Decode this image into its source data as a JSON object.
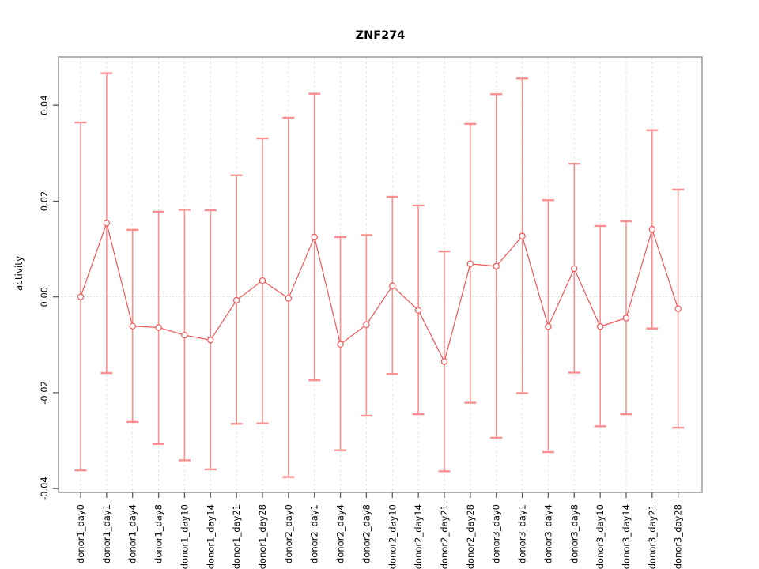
{
  "page": {
    "background": "#ffffff"
  },
  "chart_data": {
    "type": "line",
    "subtype": "points-with-error-bars",
    "title": "ZNF274",
    "xlabel": "",
    "ylabel": "activity",
    "categories": [
      "donor1_day0",
      "donor1_day1",
      "donor1_day4",
      "donor1_day8",
      "donor1_day10",
      "donor1_day14",
      "donor1_day21",
      "donor1_day28",
      "donor2_day0",
      "donor2_day1",
      "donor2_day4",
      "donor2_day8",
      "donor2_day10",
      "donor2_day14",
      "donor2_day21",
      "donor2_day28",
      "donor3_day0",
      "donor3_day1",
      "donor3_day4",
      "donor3_day8",
      "donor3_day10",
      "donor3_day14",
      "donor3_day21",
      "donor3_day28"
    ],
    "series": [
      {
        "name": "activity",
        "values": [
          0.0,
          0.0154,
          -0.0061,
          -0.0064,
          -0.008,
          -0.009,
          -0.0007,
          0.0034,
          -0.0003,
          0.0125,
          -0.0099,
          -0.0058,
          0.0023,
          -0.0028,
          -0.0135,
          0.0069,
          0.0064,
          0.0127,
          -0.0062,
          0.0059,
          -0.0062,
          -0.0044,
          0.0141,
          -0.0025
        ],
        "upper": [
          0.0364,
          0.0467,
          0.014,
          0.0178,
          0.0182,
          0.0181,
          0.0254,
          0.0331,
          0.0374,
          0.0424,
          0.0125,
          0.0129,
          0.0209,
          0.0191,
          0.0095,
          0.0361,
          0.0423,
          0.0456,
          0.0202,
          0.0278,
          0.0148,
          0.0158,
          0.0348,
          0.0224
        ],
        "lower": [
          -0.0362,
          -0.0159,
          -0.0261,
          -0.0307,
          -0.0341,
          -0.036,
          -0.0265,
          -0.0264,
          -0.0376,
          -0.0174,
          -0.032,
          -0.0248,
          -0.0161,
          -0.0245,
          -0.0364,
          -0.0221,
          -0.0294,
          -0.0201,
          -0.0324,
          -0.0158,
          -0.027,
          -0.0245,
          -0.0066,
          -0.0273
        ]
      }
    ],
    "yticks": [
      -0.04,
      -0.02,
      0.0,
      0.02,
      0.04
    ],
    "ytick_labels": [
      "-0.04",
      "-0.02",
      "0.00",
      "0.02",
      "0.04"
    ],
    "ylim": [
      -0.0408,
      0.0501
    ],
    "grid": {
      "vertical": "dashed-per-category",
      "horizontal": "dotted-zero-line-only"
    },
    "legend": "none",
    "colors": {
      "point_and_line": "#f25555",
      "error_bar": "#f99090",
      "plot_border": "#9b9b9b",
      "tick": "#5a5a5a",
      "gridline": "#e3e3e3",
      "zero_line": "#d2d2d2",
      "text": "#000000",
      "background": "#ffffff"
    }
  }
}
